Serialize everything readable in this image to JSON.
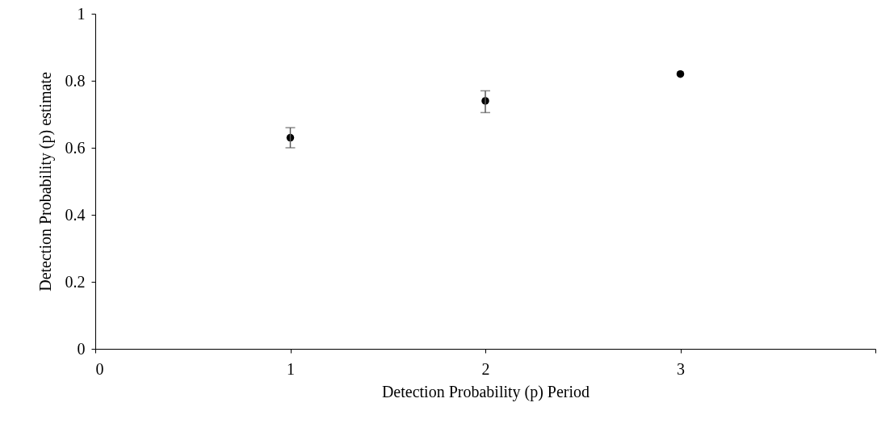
{
  "chart_data": {
    "type": "scatter",
    "xlabel": "Detection Probability (p) Period",
    "ylabel": "Detection Probability (p) estimate",
    "x": [
      1,
      2,
      3
    ],
    "series": [
      {
        "color": "#000000",
        "values": [
          0.63,
          0.74,
          0.82
        ],
        "errors": [
          [
            0.6,
            0.66
          ],
          [
            0.705,
            0.77
          ],
          null
        ]
      }
    ],
    "xlim": [
      0,
      4
    ],
    "xticks": [
      0,
      1,
      2,
      3,
      {
        "value": 4,
        "label": null
      }
    ],
    "ylim": [
      0,
      1
    ],
    "yticks": [
      0,
      0.2,
      0.4,
      0.6,
      0.8,
      1
    ],
    "grid": false,
    "marker": "circle"
  }
}
